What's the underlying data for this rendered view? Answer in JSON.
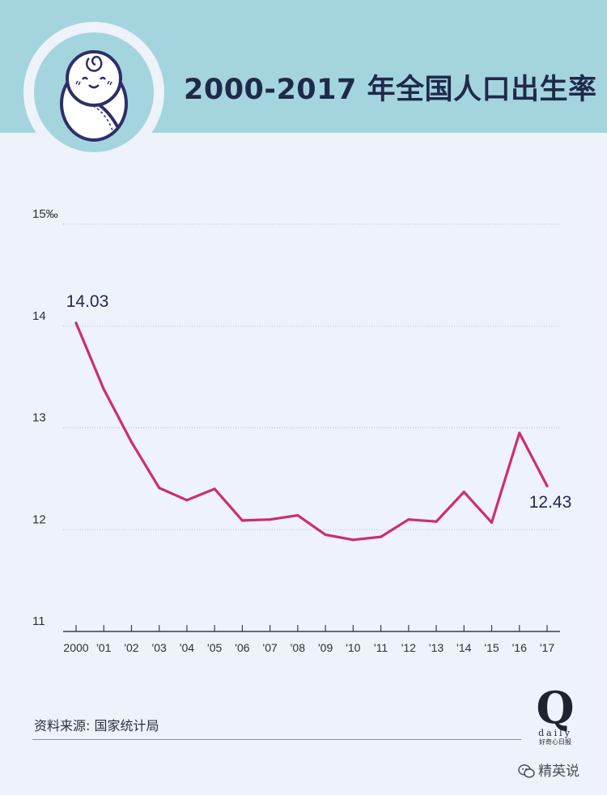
{
  "header": {
    "title": "2000-2017 年全国人口出生率"
  },
  "chart_data": {
    "type": "line",
    "title": "2000-2017 年全国人口出生率",
    "unit": "‰",
    "x": [
      "2000",
      "'01",
      "'02",
      "'03",
      "'04",
      "'05",
      "'06",
      "'07",
      "'08",
      "'09",
      "'10",
      "'11",
      "'12",
      "'13",
      "'14",
      "'15",
      "'16",
      "'17"
    ],
    "series": [
      {
        "values": [
          14.03,
          13.38,
          12.86,
          12.41,
          12.29,
          12.4,
          12.09,
          12.1,
          12.14,
          11.95,
          11.9,
          11.93,
          12.1,
          12.08,
          12.37,
          12.07,
          12.95,
          12.43
        ],
        "color": "#cc2e6e"
      }
    ],
    "ylim": [
      11,
      15
    ],
    "yticks": [
      "11",
      "12",
      "13",
      "14",
      "15‰"
    ],
    "grid": true,
    "annotations": [
      {
        "point_index": 0,
        "text": "14.03"
      },
      {
        "point_index": 17,
        "text": "12.43"
      }
    ]
  },
  "source": "资料来源: 国家统计局",
  "brand": {
    "mark": "Q",
    "name": "daily",
    "tagline": "好奇心日报"
  },
  "watermark": "精英说",
  "icons": {
    "logo": "baby-icon",
    "watermark": "wechat-icon"
  }
}
